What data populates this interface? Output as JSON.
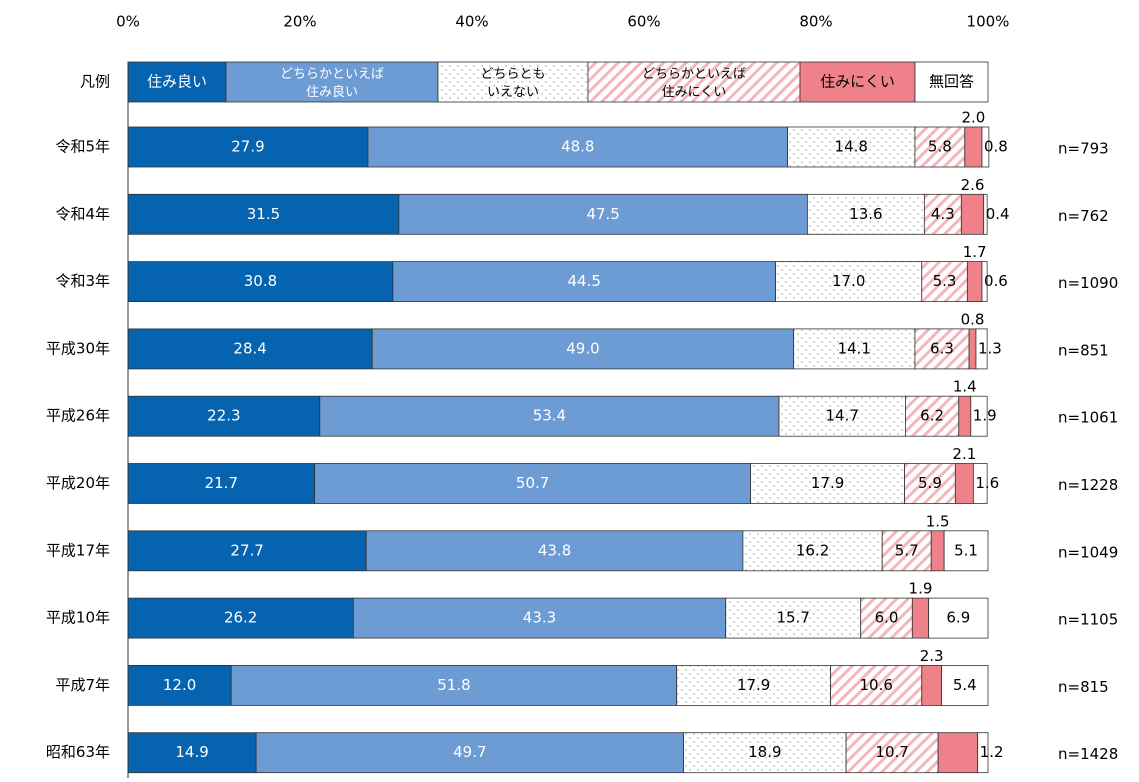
{
  "chart_data": {
    "type": "stacked_bar_horizontal",
    "legend_title": "凡例",
    "categories": [
      "令和5年",
      "令和4年",
      "令和3年",
      "平成30年",
      "平成26年",
      "平成20年",
      "平成17年",
      "平成10年",
      "平成7年",
      "昭和63年"
    ],
    "n_labels": [
      "n=793",
      "n=762",
      "n=1090",
      "n=851",
      "n=1061",
      "n=1228",
      "n=1049",
      "n=1105",
      "n=815",
      "n=1428"
    ],
    "xlim": [
      0,
      100
    ],
    "xticks": [
      {
        "value": 0,
        "label": "0%"
      },
      {
        "value": 20,
        "label": "20%"
      },
      {
        "value": 40,
        "label": "40%"
      },
      {
        "value": 60,
        "label": "60%"
      },
      {
        "value": 80,
        "label": "80%"
      },
      {
        "value": 100,
        "label": "100%"
      }
    ],
    "series": [
      {
        "name": "住み良い",
        "color": "#0563b0",
        "fill": "solid",
        "values": [
          27.9,
          31.5,
          30.8,
          28.4,
          22.3,
          21.7,
          27.7,
          26.2,
          12.0,
          14.9
        ],
        "value_labels": [
          "27.9",
          "31.5",
          "30.8",
          "28.4",
          "22.3",
          "21.7",
          "27.7",
          "26.2",
          "12.0",
          "14.9"
        ]
      },
      {
        "name": "どちらかといえば\n住み良い",
        "color": "#6d9bd4",
        "fill": "solid",
        "values": [
          48.8,
          47.5,
          44.5,
          49.0,
          53.4,
          50.7,
          43.8,
          43.3,
          51.8,
          49.7
        ],
        "value_labels": [
          "48.8",
          "47.5",
          "44.5",
          "49.0",
          "53.4",
          "50.7",
          "43.8",
          "43.3",
          "51.8",
          "49.7"
        ]
      },
      {
        "name": "どちらとも\nいえない",
        "color": "#ffffff",
        "fill": "dots",
        "values": [
          14.8,
          13.6,
          17.0,
          14.1,
          14.7,
          17.9,
          16.2,
          15.7,
          17.9,
          18.9
        ],
        "value_labels": [
          "14.8",
          "13.6",
          "17.0",
          "14.1",
          "14.7",
          "17.9",
          "16.2",
          "15.7",
          "17.9",
          "18.9"
        ]
      },
      {
        "name": "どちらかといえば\n住みにくい",
        "color": "#f4b6bc",
        "fill": "hatch",
        "values": [
          5.8,
          4.3,
          5.3,
          6.3,
          6.2,
          5.9,
          5.7,
          6.0,
          10.6,
          10.7
        ],
        "value_labels": [
          "5.8",
          "4.3",
          "5.3",
          "6.3",
          "6.2",
          "5.9",
          "5.7",
          "6.0",
          "10.6",
          "10.7"
        ]
      },
      {
        "name": "住みにくい",
        "color": "#ee8189",
        "fill": "solid",
        "values": [
          2.0,
          2.6,
          1.7,
          0.8,
          1.4,
          2.1,
          1.5,
          1.9,
          2.3,
          4.6
        ],
        "value_labels": [
          "2.0",
          "2.6",
          "1.7",
          "0.8",
          "1.4",
          "2.1",
          "1.5",
          "1.9",
          "2.3",
          null
        ]
      },
      {
        "name": "無回答",
        "color": "#ffffff",
        "fill": "solid",
        "values": [
          0.8,
          0.4,
          0.6,
          1.3,
          1.9,
          1.6,
          5.1,
          6.9,
          5.4,
          1.2
        ],
        "value_labels": [
          "0.8",
          "0.4",
          "0.6",
          "1.3",
          "1.9",
          "1.6",
          "5.1",
          "6.9",
          "5.4",
          "1.2"
        ]
      }
    ]
  }
}
